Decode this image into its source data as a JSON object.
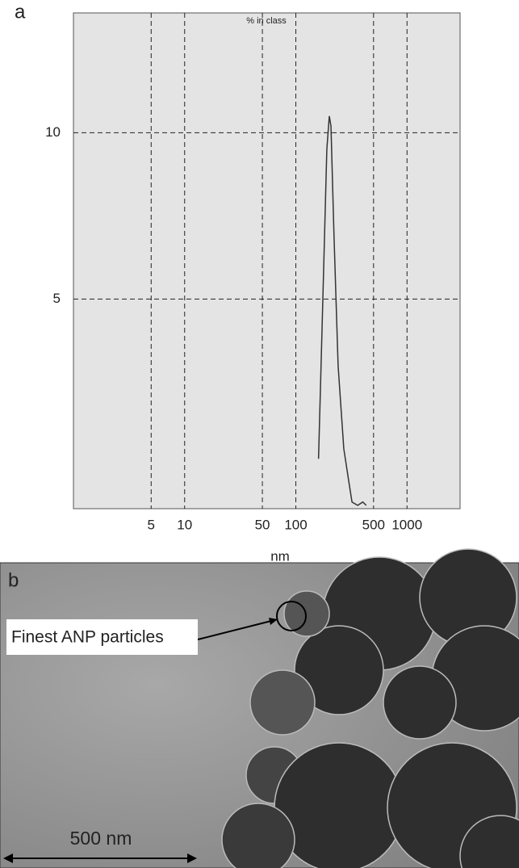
{
  "chart_data": {
    "type": "line",
    "panel_label": "a",
    "title": "% in class",
    "xlabel": "nm",
    "x": [
      160,
      175,
      190,
      200,
      207,
      220,
      240,
      270,
      300,
      320,
      360,
      400,
      430
    ],
    "values": [
      0.2,
      5,
      9.5,
      10.5,
      10.2,
      7,
      3,
      0.5,
      -0.5,
      -1.1,
      -1.2,
      -1.1,
      -1.2
    ],
    "color": "#333333",
    "xscale": "log",
    "xlim": [
      1,
      3000
    ],
    "ylim": [
      -1.3,
      13.6
    ],
    "xticks": [
      5,
      10,
      50,
      100,
      500,
      1000
    ],
    "yticks": [
      5,
      10
    ],
    "grid": true
  },
  "image": {
    "panel_label": "b",
    "annotation": "Finest ANP particles",
    "scale_bar": "500 nm"
  }
}
